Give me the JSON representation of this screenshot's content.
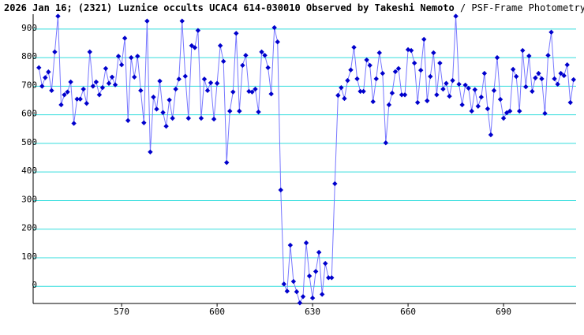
{
  "chart_data": {
    "type": "line",
    "title": "2026 Jan 16; (2321) Luznice occults UCAC4 614-030010 Observed by Takeshi Nemoto",
    "subtitle": "/ PSF-Frame Photometry /",
    "x": [
      544,
      545,
      546,
      547,
      548,
      549,
      550,
      551,
      552,
      553,
      554,
      555,
      556,
      557,
      558,
      559,
      560,
      561,
      562,
      563,
      564,
      565,
      566,
      567,
      568,
      569,
      570,
      571,
      572,
      573,
      574,
      575,
      576,
      577,
      578,
      579,
      580,
      581,
      582,
      583,
      584,
      585,
      586,
      587,
      588,
      589,
      590,
      591,
      592,
      593,
      594,
      595,
      596,
      597,
      598,
      599,
      600,
      601,
      602,
      603,
      604,
      605,
      606,
      607,
      608,
      609,
      610,
      611,
      612,
      613,
      614,
      615,
      616,
      617,
      618,
      619,
      620,
      621,
      622,
      623,
      624,
      625,
      626,
      627,
      628,
      629,
      630,
      631,
      632,
      633,
      634,
      635,
      636,
      637,
      638,
      639,
      640,
      641,
      642,
      643,
      644,
      645,
      646,
      647,
      648,
      649,
      650,
      651,
      652,
      653,
      654,
      655,
      656,
      657,
      658,
      659,
      660,
      661,
      662,
      663,
      664,
      665,
      666,
      667,
      668,
      669,
      670,
      671,
      672,
      673,
      674,
      675,
      676,
      677,
      678,
      679,
      680,
      681,
      682,
      683,
      684,
      685,
      686,
      687,
      688,
      689,
      690,
      691,
      692,
      693,
      694,
      695,
      696,
      697,
      698,
      699,
      700,
      701,
      702,
      703,
      704,
      705,
      706,
      707,
      708,
      709,
      710,
      711,
      712
    ],
    "series": [
      {
        "color": "#0000cc",
        "line_color": "#7777ff",
        "values": [
          765,
          700,
          730,
          750,
          685,
          820,
          945,
          635,
          670,
          680,
          715,
          570,
          655,
          655,
          690,
          640,
          820,
          700,
          715,
          670,
          695,
          762,
          710,
          732,
          705,
          805,
          775,
          868,
          580,
          800,
          732,
          805,
          685,
          572,
          928,
          470,
          662,
          620,
          718,
          608,
          560,
          652,
          588,
          690,
          725,
          928,
          735,
          588,
          842,
          835,
          895,
          588,
          725,
          685,
          712,
          585,
          710,
          842,
          787,
          433,
          613,
          680,
          885,
          613,
          773,
          808,
          682,
          680,
          690,
          610,
          820,
          808,
          765,
          673,
          905,
          855,
          337,
          8,
          -17,
          144,
          17,
          -19,
          -58,
          -36,
          152,
          36,
          -41,
          52,
          119,
          -28,
          80,
          30,
          30,
          359,
          668,
          695,
          657,
          720,
          757,
          836,
          726,
          682,
          682,
          792,
          773,
          646,
          726,
          817,
          745,
          502,
          635,
          676,
          751,
          762,
          670,
          670,
          828,
          825,
          781,
          643,
          756,
          864,
          649,
          734,
          817,
          670,
          781,
          690,
          710,
          665,
          720,
          945,
          707,
          635,
          704,
          693,
          613,
          688,
          630,
          662,
          745,
          621,
          530,
          685,
          800,
          654,
          588,
          607,
          613,
          759,
          734,
          613,
          825,
          698,
          806,
          682,
          729,
          745,
          726,
          605,
          808,
          889,
          726,
          707,
          745,
          737,
          775,
          643,
          723
        ]
      }
    ],
    "xlim": [
      542.2,
      712.8
    ],
    "xticks": [
      570,
      600,
      630,
      660,
      690
    ],
    "ylim": [
      -60,
      952
    ],
    "yticks": [
      0,
      100,
      200,
      300,
      400,
      500,
      600,
      700,
      800,
      900
    ],
    "grid": true,
    "grid_color": "#33dddd"
  }
}
